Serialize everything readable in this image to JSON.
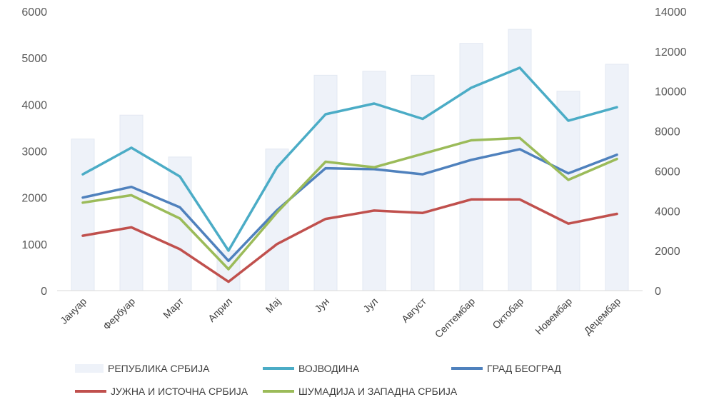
{
  "chart_data": {
    "type": "bar",
    "categories": [
      "Јануар",
      "Фербуар",
      "Март",
      "Април",
      "Мај",
      "Јун",
      "Јул",
      "Август",
      "Септембар",
      "Октобар",
      "Новембар",
      "Децембар"
    ],
    "left_axis": {
      "ylim": [
        0,
        6000
      ],
      "ticks": [
        "0",
        "1000",
        "2000",
        "3000",
        "4000",
        "5000",
        "6000"
      ]
    },
    "right_axis": {
      "ylim": [
        0,
        14000
      ],
      "ticks": [
        "0",
        "2000",
        "4000",
        "6000",
        "8000",
        "10000",
        "12000",
        "14000"
      ]
    },
    "series": [
      {
        "name": "РЕПУБЛИКА СРБИЈА",
        "kind": "bar",
        "axis": "right",
        "color": "#eef2f9",
        "values": [
          7600,
          8800,
          6700,
          2000,
          7100,
          10800,
          11000,
          10800,
          12400,
          13100,
          10000,
          11350
        ]
      },
      {
        "name": "ВОЈВОДИНА",
        "kind": "line",
        "axis": "left",
        "color": "#4bacc6",
        "values": [
          2500,
          3070,
          2450,
          860,
          2650,
          3790,
          4020,
          3690,
          4360,
          4790,
          3650,
          3940
        ]
      },
      {
        "name": "ГРАД БЕОГРАД",
        "kind": "line",
        "axis": "left",
        "color": "#4f81bd",
        "values": [
          2000,
          2230,
          1790,
          640,
          1730,
          2630,
          2610,
          2500,
          2810,
          3040,
          2520,
          2920
        ]
      },
      {
        "name": "ЈУЖНА И ИСТОЧНА СРБИЈА",
        "kind": "line",
        "axis": "left",
        "color": "#c0504d",
        "values": [
          1180,
          1360,
          890,
          190,
          1000,
          1540,
          1720,
          1670,
          1960,
          1960,
          1440,
          1650
        ]
      },
      {
        "name": "ШУМАДИЈА И ЗАПАДНА СРБИЈА",
        "kind": "line",
        "axis": "left",
        "color": "#9bbb59",
        "values": [
          1890,
          2050,
          1550,
          460,
          1680,
          2770,
          2650,
          2940,
          3230,
          3280,
          2380,
          2830
        ]
      }
    ],
    "legend_position": "bottom",
    "grid": false
  }
}
